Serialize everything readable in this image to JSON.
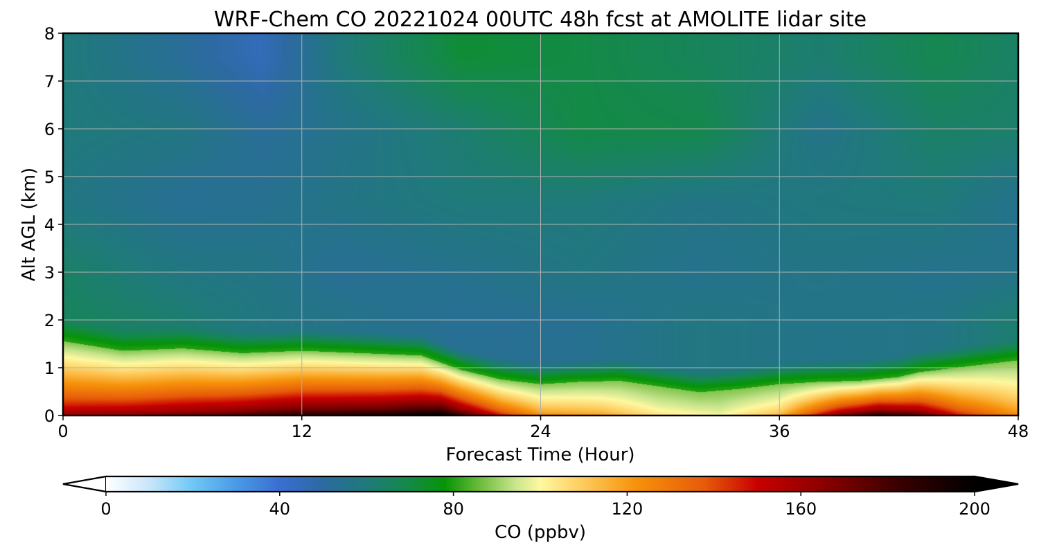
{
  "chart_data": {
    "type": "heatmap",
    "title": "WRF-Chem CO  20221024 00UTC 48h fcst at AMOLITE lidar site",
    "xlabel": "Forecast Time (Hour)",
    "ylabel": "Alt AGL (km)",
    "xlim": [
      0,
      48
    ],
    "ylim": [
      0,
      8
    ],
    "x_ticks": [
      0,
      12,
      24,
      36,
      48
    ],
    "y_ticks": [
      0,
      1,
      2,
      3,
      4,
      5,
      6,
      7,
      8
    ],
    "grid": true,
    "colorbar": {
      "label": "CO  (ppbv)",
      "range": [
        0,
        200
      ],
      "ticks": [
        0,
        40,
        80,
        120,
        160,
        200
      ],
      "extend": "both",
      "orientation": "horizontal",
      "stops": [
        {
          "v": 0,
          "c": "#ffffff"
        },
        {
          "v": 10,
          "c": "#c8e6fa"
        },
        {
          "v": 20,
          "c": "#6ec8f5"
        },
        {
          "v": 30,
          "c": "#4a9ae6"
        },
        {
          "v": 40,
          "c": "#3a6ed2"
        },
        {
          "v": 50,
          "c": "#2c6aa0"
        },
        {
          "v": 60,
          "c": "#1f7a7a"
        },
        {
          "v": 70,
          "c": "#138a46"
        },
        {
          "v": 78,
          "c": "#069406"
        },
        {
          "v": 86,
          "c": "#6bbb3a"
        },
        {
          "v": 94,
          "c": "#c6e48c"
        },
        {
          "v": 100,
          "c": "#fef8a0"
        },
        {
          "v": 110,
          "c": "#fdca5c"
        },
        {
          "v": 122,
          "c": "#f7920a"
        },
        {
          "v": 138,
          "c": "#e65a0a"
        },
        {
          "v": 150,
          "c": "#c80000"
        },
        {
          "v": 165,
          "c": "#8c0000"
        },
        {
          "v": 182,
          "c": "#3c0000"
        },
        {
          "v": 200,
          "c": "#000000"
        }
      ]
    },
    "boundary_layer_top_km": {
      "x": [
        0,
        3,
        6,
        9,
        12,
        15,
        18,
        20,
        22,
        24,
        26,
        28,
        30,
        32,
        34,
        36,
        38,
        40,
        42,
        43,
        45,
        47,
        48
      ],
      "y": [
        1.55,
        1.35,
        1.4,
        1.3,
        1.35,
        1.3,
        1.25,
        0.95,
        0.75,
        0.65,
        0.7,
        0.72,
        0.6,
        0.48,
        0.55,
        0.65,
        0.7,
        0.72,
        0.8,
        0.9,
        1.0,
        1.1,
        1.15
      ]
    },
    "surface_peak_ppbv": {
      "x": [
        0,
        4,
        8,
        12,
        16,
        19,
        22,
        24,
        27,
        30,
        33,
        36,
        39,
        41,
        43,
        45,
        48
      ],
      "y": [
        165,
        170,
        178,
        190,
        195,
        205,
        150,
        125,
        120,
        105,
        100,
        115,
        170,
        190,
        180,
        150,
        125
      ]
    },
    "upper_layers": [
      {
        "x": [
          0,
          6,
          10,
          14,
          20,
          26,
          32,
          38,
          44,
          48
        ],
        "alt_km": 7.5,
        "y": [
          60,
          52,
          45,
          60,
          72,
          70,
          66,
          62,
          68,
          64
        ]
      },
      {
        "x": [
          0,
          6,
          10,
          14,
          20,
          26,
          32,
          38,
          44,
          48
        ],
        "alt_km": 6.0,
        "y": [
          60,
          58,
          52,
          56,
          62,
          70,
          69,
          56,
          64,
          63
        ]
      },
      {
        "x": [
          0,
          6,
          10,
          14,
          20,
          26,
          32,
          38,
          44,
          48
        ],
        "alt_km": 4.5,
        "y": [
          58,
          53,
          54,
          57,
          60,
          60,
          57,
          59,
          60,
          55
        ]
      },
      {
        "x": [
          0,
          6,
          10,
          14,
          20,
          26,
          32,
          38,
          44,
          48
        ],
        "alt_km": 3.0,
        "y": [
          64,
          58,
          57,
          53,
          55,
          58,
          55,
          57,
          55,
          56
        ]
      },
      {
        "x": [
          0,
          6,
          10,
          14,
          20,
          26,
          32,
          38,
          44,
          48
        ],
        "alt_km": 2.0,
        "y": [
          66,
          62,
          58,
          56,
          53,
          54,
          58,
          56,
          57,
          62
        ]
      }
    ]
  }
}
